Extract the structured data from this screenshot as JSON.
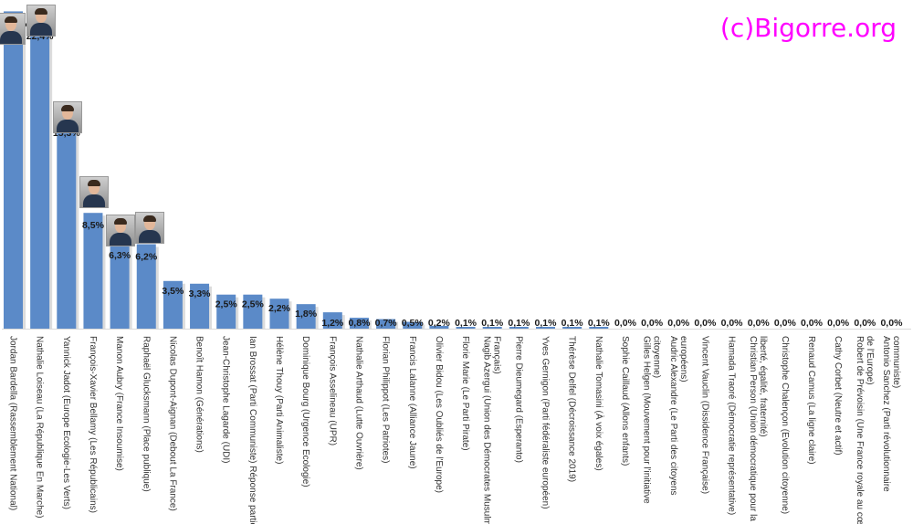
{
  "watermark": "(c)Bigorre.org",
  "chart_data": {
    "type": "bar",
    "title": "",
    "xlabel": "",
    "ylabel": "",
    "ylim": [
      0,
      24
    ],
    "grid": false,
    "legend": "none",
    "bar_color": "#5b8ac8",
    "categories": [
      "Jordan Bardella (Rassemblement National)",
      "Nathalie Loiseau (La République En Marche)",
      "Yannick Jadot (Europe Ecologie-Les Verts)",
      "François-Xavier Bellamy (Les Républicains)",
      "Manon Aubry (France Insoumise)",
      "Raphaël Glucksmann (Place publique)",
      "Nicolas Dupont-Aignan (Debout La France)",
      "Benoît Hamon (Générations)",
      "Jean-Christophe Lagarde (UDI)",
      "Ian Brossat (Parti Communiste) Réponse partielle",
      "Hélène Thouy (Parti Animaliste)",
      "Dominique Bourg (Urgence Ecologie)",
      "François Asselineau (UPR)",
      "Nathalie Arthaud (Lutte Ouvrière)",
      "Florian Philippot (Les Patriotes)",
      "Francis Lalanne (Alliance Jaune)",
      "Olivier Bidou (Les Oubliés de l'Europe)",
      "Florie Marie (Le Parti Pirate)",
      "Nagib Azergui (Union des Démocrates Musulmans|Français)",
      "Pierre Dieumegard (Esperanto)",
      "Yves Gernigon (Parti fédéraliste européen)",
      "Thérèse Delfel (Décroissance 2019)",
      "Nathalie Tomasini (À voix égales)",
      "Sophie Caillaud (Allons enfants)",
      "Gilles Helgen (Mouvement pour l'initiative|citoyenne)",
      "Audric Alexandre (Le Parti des citoyens|européens)",
      "Vincent Vauclin (Dissidence Française)",
      "Hamada Traoré (Démocratie représentative)",
      "Christian Person (Union démocratique pour la|liberté, égalité, fraternité)",
      "Christophe Chalençon (Evolution citoyenne)",
      "Renaud Camus (La ligne claire)",
      "Cathy Corbet (Neutre et actif)",
      "Robert de Prévoisin (Une France royale au cœur|de l'Europe)",
      "Antonio Sanchez (Parti révolutionnaire|communiste)"
    ],
    "values": [
      23.3,
      22.4,
      15.3,
      8.5,
      6.3,
      6.2,
      3.5,
      3.3,
      2.5,
      2.5,
      2.2,
      1.8,
      1.2,
      0.8,
      0.7,
      0.5,
      0.2,
      0.1,
      0.1,
      0.1,
      0.1,
      0.1,
      0.1,
      0.0,
      0.0,
      0.0,
      0.0,
      0.0,
      0.0,
      0.0,
      0.0,
      0.0,
      0.0,
      0.0
    ],
    "data_labels": [
      "23,3%",
      "22,4%",
      "15,3%",
      "8,5%",
      "6,3%",
      "6,2%",
      "3,5%",
      "3,3%",
      "2,5%",
      "2,5%",
      "2,2%",
      "1,8%",
      "1,2%",
      "0,8%",
      "0,7%",
      "0,5%",
      "0,2%",
      "0,1%",
      "0,1%",
      "0,1%",
      "0,1%",
      "0,1%",
      "0,1%",
      "0,0%",
      "0,0%",
      "0,0%",
      "0,0%",
      "0,0%",
      "0,0%",
      "0,0%",
      "0,0%",
      "0,0%",
      "0,0%",
      "0,0%"
    ],
    "photo_bars": [
      0,
      1,
      2,
      3,
      4,
      5
    ]
  }
}
